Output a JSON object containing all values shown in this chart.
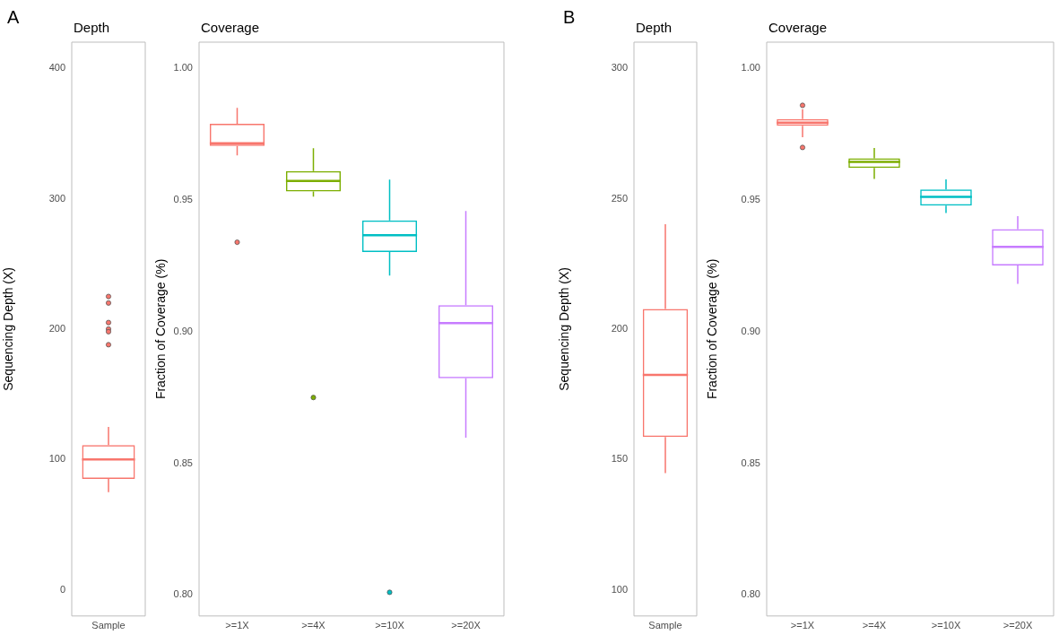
{
  "chart_data": [
    {
      "type": "box",
      "title": "Depth",
      "ylabel": "Sequencing Depth (X)",
      "annotations": [
        "A"
      ],
      "categories": [
        "Sample"
      ],
      "color": "#f8766d",
      "ylim": [
        -20,
        420
      ],
      "yticks": [
        0,
        100,
        200,
        300,
        400
      ],
      "grid": false,
      "legend": false,
      "boxes": [
        {
          "low": 75,
          "q1": 85,
          "median": 100,
          "q3": 111,
          "high": 125,
          "outliers": [
            225,
            220,
            205,
            200,
            198,
            188
          ]
        }
      ]
    },
    {
      "type": "box",
      "title": "Coverage",
      "ylabel": "Fraction of Coverage (%)",
      "categories": [
        ">=1X",
        ">=4X",
        ">=10X",
        ">=20X"
      ],
      "colors": [
        "#f8766d",
        "#7cae00",
        "#00bfc4",
        "#c77cff"
      ],
      "ylim": [
        0.792,
        1.01
      ],
      "yticks": [
        {
          "value": 0.8,
          "label": "0.80"
        },
        {
          "value": 0.85,
          "label": "0.85"
        },
        {
          "value": 0.9,
          "label": "0.90"
        },
        {
          "value": 0.95,
          "label": "0.95"
        },
        {
          "value": 1.0,
          "label": "1.00"
        }
      ],
      "grid": false,
      "legend": false,
      "boxes": [
        {
          "low": 0.967,
          "q1": 0.9706,
          "median": 0.9716,
          "q3": 0.979,
          "high": 0.985,
          "outliers": [
            0.934
          ]
        },
        {
          "low": 0.9513,
          "q1": 0.9533,
          "median": 0.9573,
          "q3": 0.961,
          "high": 0.9697,
          "outliers": [
            0.875
          ]
        },
        {
          "low": 0.9213,
          "q1": 0.9303,
          "median": 0.9367,
          "q3": 0.9423,
          "high": 0.9578,
          "outliers": [
            0.801
          ]
        },
        {
          "low": 0.8597,
          "q1": 0.8823,
          "median": 0.9033,
          "q3": 0.9101,
          "high": 0.9459
        }
      ]
    },
    {
      "type": "box",
      "title": "Depth",
      "ylabel": "Sequencing Depth (X)",
      "annotations": [
        "B"
      ],
      "categories": [
        "Sample"
      ],
      "color": "#f8766d",
      "ylim": [
        90,
        310
      ],
      "yticks": [
        100,
        150,
        200,
        250,
        300
      ],
      "grid": false,
      "legend": false,
      "boxes": [
        {
          "low": 144.8,
          "q1": 158.6,
          "median": 182.4,
          "q3": 207.7,
          "high": 240.2
        }
      ]
    },
    {
      "type": "box",
      "title": "Coverage",
      "ylabel": "Fraction of Coverage (%)",
      "categories": [
        ">=1X",
        ">=4X",
        ">=10X",
        ">=20X"
      ],
      "colors": [
        "#f8766d",
        "#7cae00",
        "#00bfc4",
        "#c77cff"
      ],
      "ylim": [
        0.792,
        1.01
      ],
      "yticks": [
        {
          "value": 0.8,
          "label": "0.80"
        },
        {
          "value": 0.85,
          "label": "0.85"
        },
        {
          "value": 0.9,
          "label": "0.90"
        },
        {
          "value": 0.95,
          "label": "0.95"
        },
        {
          "value": 1.0,
          "label": "1.00"
        }
      ],
      "grid": false,
      "legend": false,
      "boxes": [
        {
          "low": 0.9739,
          "q1": 0.9782,
          "median": 0.9794,
          "q3": 0.9808,
          "high": 0.9845,
          "outliers": [
            0.986,
            0.97
          ]
        },
        {
          "low": 0.958,
          "q1": 0.9622,
          "median": 0.9645,
          "q3": 0.9659,
          "high": 0.9698
        },
        {
          "low": 0.9451,
          "q1": 0.9479,
          "median": 0.9512,
          "q3": 0.954,
          "high": 0.9579
        },
        {
          "low": 0.9182,
          "q1": 0.9252,
          "median": 0.9322,
          "q3": 0.939,
          "high": 0.9439
        }
      ]
    }
  ]
}
